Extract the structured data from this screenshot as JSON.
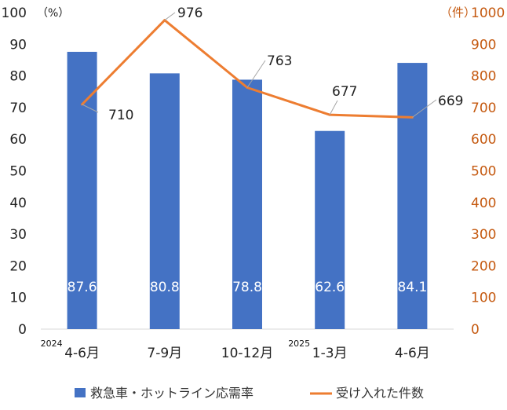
{
  "chart_data": {
    "type": "bar+line",
    "categories": [
      "4-6月",
      "7-9月",
      "10-12月",
      "1-3月",
      "4-6月"
    ],
    "year_markers": [
      {
        "category_index": 0,
        "label": "2024"
      },
      {
        "category_index": 3,
        "label": "2025"
      }
    ],
    "series": [
      {
        "name": "救急車・ホットライン応需率",
        "type": "bar",
        "axis": "left",
        "color": "#4472C4",
        "values": [
          87.6,
          80.8,
          78.8,
          62.6,
          84.1
        ],
        "labels": [
          "87.6",
          "80.8",
          "78.8",
          "62.6",
          "84.1"
        ]
      },
      {
        "name": "受け入れた件数",
        "type": "line",
        "axis": "right",
        "color": "#ED7D31",
        "values": [
          710,
          976,
          763,
          677,
          669
        ],
        "labels": [
          "710",
          "976",
          "763",
          "677",
          "669"
        ]
      }
    ],
    "y_left": {
      "unit": "（%）",
      "min": 0,
      "max": 100,
      "step": 10,
      "ticks": [
        "0",
        "10",
        "20",
        "30",
        "40",
        "50",
        "60",
        "70",
        "80",
        "90",
        "100"
      ]
    },
    "y_right": {
      "unit": "（件）",
      "min": 0,
      "max": 1000,
      "step": 100,
      "color": "#C55A11",
      "ticks": [
        "0",
        "100",
        "200",
        "300",
        "400",
        "500",
        "600",
        "700",
        "800",
        "900",
        "1000"
      ]
    },
    "grid": false,
    "legend_position": "bottom"
  }
}
